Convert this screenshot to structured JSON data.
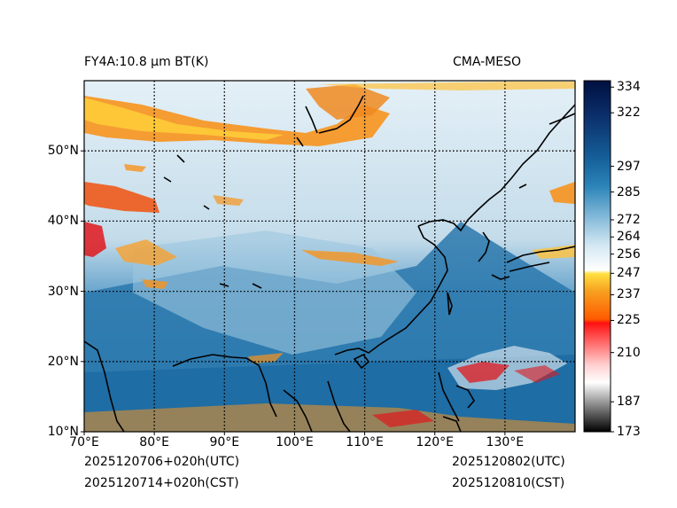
{
  "header": {
    "product_title": "FY4A:10.8 µm BT(K)",
    "source": "CMA-MESO"
  },
  "map": {
    "x_ticks": [
      {
        "value": 70,
        "label": "70°E"
      },
      {
        "value": 80,
        "label": "80°E"
      },
      {
        "value": 90,
        "label": "90°E"
      },
      {
        "value": 100,
        "label": "100°E"
      },
      {
        "value": 110,
        "label": "110°E"
      },
      {
        "value": 120,
        "label": "120°E"
      },
      {
        "value": 130,
        "label": "130°E"
      }
    ],
    "y_ticks": [
      {
        "value": 10,
        "label": "10°N"
      },
      {
        "value": 20,
        "label": "20°N"
      },
      {
        "value": 30,
        "label": "30°N"
      },
      {
        "value": 40,
        "label": "40°N"
      },
      {
        "value": 50,
        "label": "50°N"
      }
    ],
    "lon_range": [
      70,
      140
    ],
    "lat_range": [
      10,
      60
    ]
  },
  "colorbar": {
    "range": [
      173,
      337
    ],
    "ticks": [
      334,
      322,
      297,
      285,
      272,
      264,
      256,
      247,
      237,
      225,
      210,
      187,
      173
    ]
  },
  "footer": {
    "init_utc": "2025120706+020h(UTC)",
    "init_cst": "2025120714+020h(CST)",
    "valid_utc": "2025120802(UTC)",
    "valid_cst": "2025120810(CST)"
  },
  "colors": {
    "ocean_warm": "#2a78ad",
    "land_cool": "#cfe2ee",
    "cold_cloud": "#f7941d",
    "very_cold": "#e0181c"
  }
}
